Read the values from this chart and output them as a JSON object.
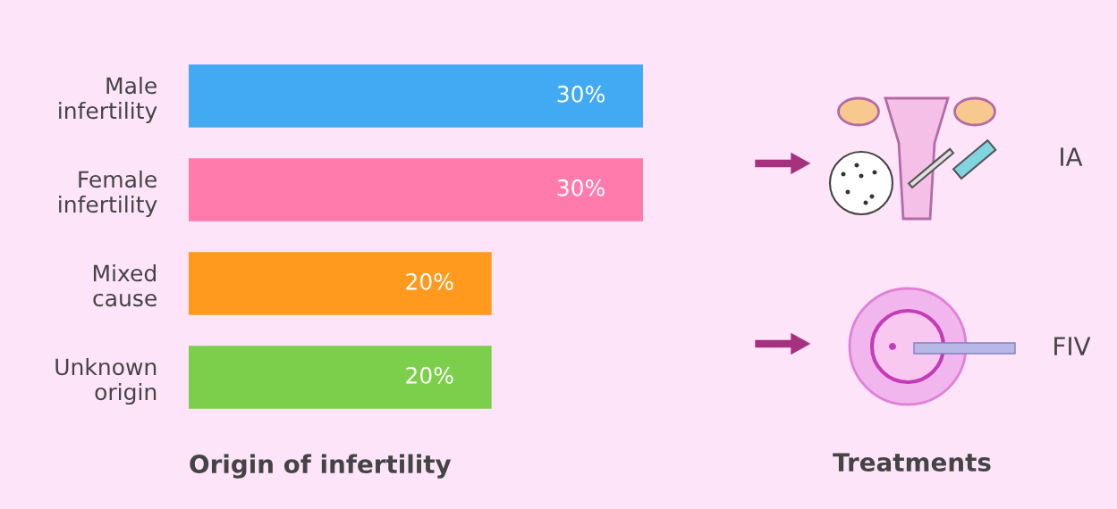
{
  "chart_data": {
    "type": "bar",
    "orientation": "horizontal",
    "xlabel": "Origin of infertility",
    "categories": [
      "Male\ninfertility",
      "Female\ninfertility",
      "Mixed\ncause",
      "Unknown\norigin"
    ],
    "values": [
      30,
      30,
      20,
      20
    ],
    "colors": [
      "#42a9f3",
      "#ff7bac",
      "#ff9a1e",
      "#7ccf4a"
    ],
    "value_labels": [
      "30%",
      "30%",
      "20%",
      "20%"
    ],
    "grid": false,
    "legend": false,
    "tick_labels": "y",
    "annotations": [
      "IA",
      "FIV",
      "Treatments"
    ]
  }
}
